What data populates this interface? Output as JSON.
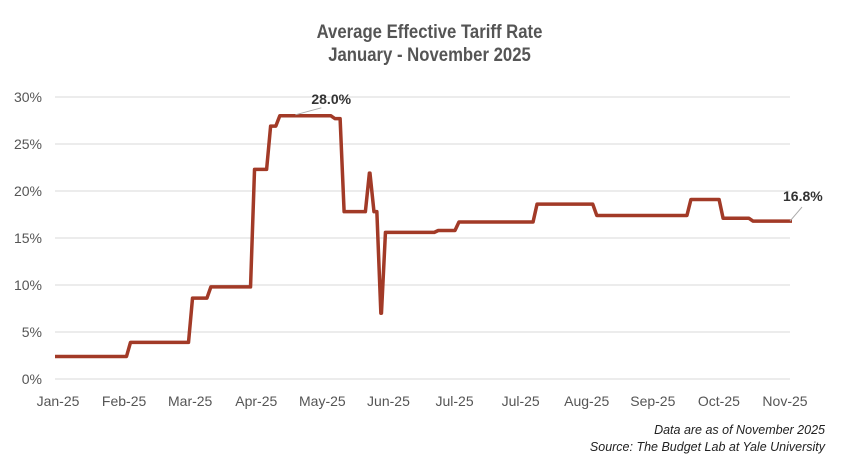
{
  "chart_data": {
    "type": "line",
    "title": "Average Effective Tariff Rate",
    "subtitle": "January - November 2025",
    "xlabel": "",
    "ylabel": "",
    "x_tick_labels": [
      "Jan-25",
      "Feb-25",
      "Mar-25",
      "Apr-25",
      "May-25",
      "Jun-25",
      "Jul-25",
      "Jul-25",
      "Aug-25",
      "Sep-25",
      "Oct-25",
      "Nov-25"
    ],
    "xlim": [
      "2025-01-01",
      "2025-11-17"
    ],
    "ylim": [
      0,
      30
    ],
    "y_ticks": [
      0,
      5,
      10,
      15,
      20,
      25,
      30
    ],
    "y_tick_format": "%",
    "grid": "horizontal",
    "line_color": "#a23a27",
    "interpolation": "step-after",
    "series": [
      {
        "points": [
          [
            "2025-01-01",
            2.4
          ],
          [
            "2025-02-02",
            3.9
          ],
          [
            "2025-03-01",
            8.6
          ],
          [
            "2025-03-09",
            9.8
          ],
          [
            "2025-03-28",
            22.3
          ],
          [
            "2025-04-04",
            26.9
          ],
          [
            "2025-04-08",
            28.0
          ],
          [
            "2025-05-02",
            27.7
          ],
          [
            "2025-05-06",
            17.8
          ],
          [
            "2025-05-17",
            21.9
          ],
          [
            "2025-05-19",
            17.8
          ],
          [
            "2025-05-22",
            7.0
          ],
          [
            "2025-05-24",
            15.6
          ],
          [
            "2025-06-16",
            15.8
          ],
          [
            "2025-06-25",
            16.7
          ],
          [
            "2025-07-29",
            18.6
          ],
          [
            "2025-08-24",
            17.4
          ],
          [
            "2025-10-04",
            19.1
          ],
          [
            "2025-10-18",
            17.1
          ],
          [
            "2025-10-31",
            16.8
          ],
          [
            "2025-11-17",
            16.8
          ]
        ]
      }
    ],
    "annotations": [
      {
        "text": "28.0%",
        "x": "2025-04-20",
        "y": 28.0
      },
      {
        "text": "16.8%",
        "x": "2025-11-17",
        "y": 16.8
      }
    ]
  },
  "footer": {
    "note": "Data are as of November 2025",
    "source": "Source: The Budget Lab at Yale University"
  }
}
